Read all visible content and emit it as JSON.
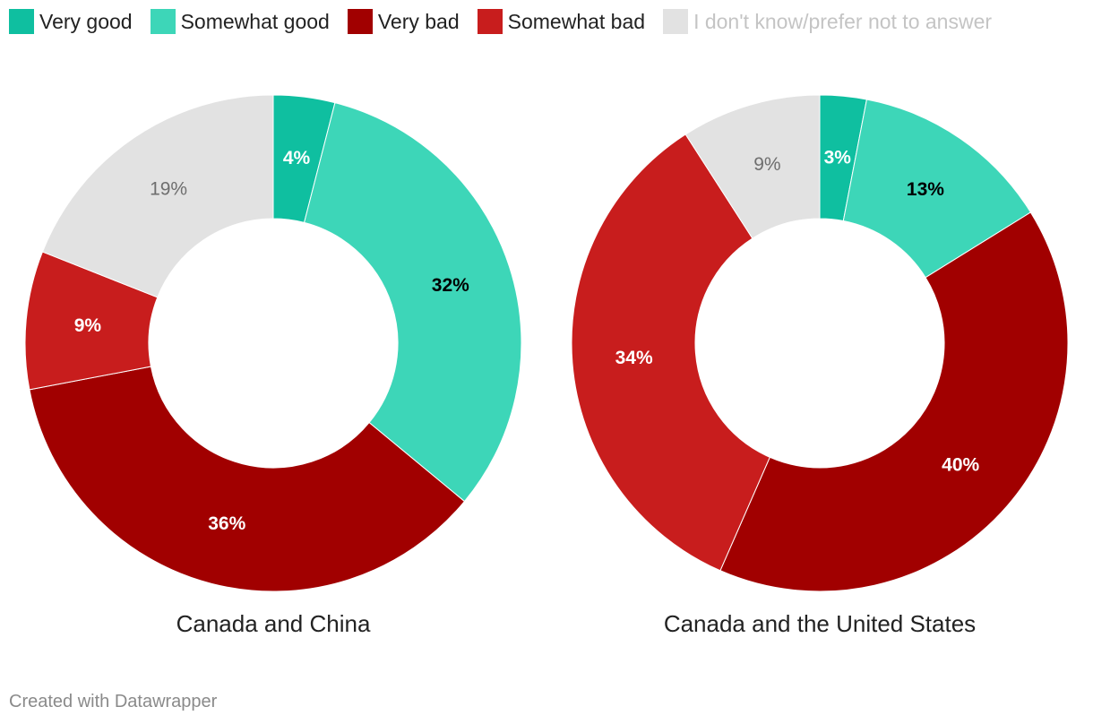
{
  "legend": [
    {
      "label": "Very good",
      "color": "#0fbfa0"
    },
    {
      "label": "Somewhat good",
      "color": "#3dd6b8"
    },
    {
      "label": "Very bad",
      "color": "#a10000"
    },
    {
      "label": "Somewhat bad",
      "color": "#c81d1d"
    },
    {
      "label": "I don't know/prefer not to answer",
      "color": "#e2e2e2"
    }
  ],
  "chart_data": [
    {
      "type": "pie",
      "title": "Canada and China",
      "labels": [
        "Very good",
        "Somewhat good",
        "Very bad",
        "Somewhat bad",
        "I don't know/prefer not to answer"
      ],
      "values": [
        4,
        32,
        36,
        9,
        19
      ],
      "data_labels": [
        "4%",
        "32%",
        "36%",
        "9%",
        "19%"
      ]
    },
    {
      "type": "pie",
      "title": "Canada and the United States",
      "labels": [
        "Very good",
        "Somewhat good",
        "Very bad",
        "Somewhat bad",
        "I don't know/prefer not to answer"
      ],
      "values": [
        3,
        13,
        40,
        34,
        9
      ],
      "data_labels": [
        "3%",
        "13%",
        "40%",
        "34%",
        "9%"
      ]
    }
  ],
  "footer": "Created with Datawrapper"
}
